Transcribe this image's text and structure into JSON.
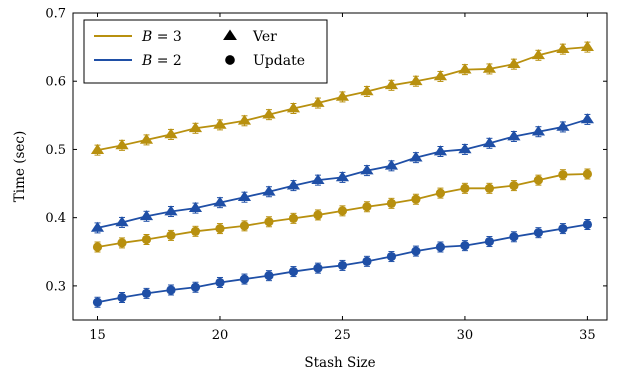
{
  "chart_data": {
    "type": "line",
    "xlabel": "Stash Size",
    "ylabel": "Time (sec)",
    "xlim": [
      14.0,
      35.8
    ],
    "ylim": [
      0.25,
      0.7
    ],
    "x_ticks": [
      15,
      20,
      25,
      30,
      35
    ],
    "y_ticks": [
      0.3,
      0.4,
      0.5,
      0.6,
      0.7
    ],
    "grid": false,
    "legend_position": "top-left",
    "x": [
      15,
      16,
      17,
      18,
      19,
      20,
      21,
      22,
      23,
      24,
      25,
      26,
      27,
      28,
      29,
      30,
      31,
      32,
      33,
      34,
      35
    ],
    "series": [
      {
        "name": "B = 3, Ver",
        "color": "#b8900f",
        "marker": "triangle",
        "values": [
          0.499,
          0.506,
          0.514,
          0.522,
          0.531,
          0.536,
          0.542,
          0.551,
          0.56,
          0.568,
          0.577,
          0.585,
          0.594,
          0.6,
          0.607,
          0.617,
          0.618,
          0.625,
          0.638,
          0.647,
          0.65
        ]
      },
      {
        "name": "B = 2, Ver",
        "color": "#1f4fa6",
        "marker": "triangle",
        "values": [
          0.385,
          0.393,
          0.402,
          0.409,
          0.414,
          0.422,
          0.43,
          0.438,
          0.447,
          0.455,
          0.459,
          0.469,
          0.476,
          0.488,
          0.497,
          0.5,
          0.509,
          0.519,
          0.526,
          0.533,
          0.544
        ]
      },
      {
        "name": "B = 3, Update",
        "color": "#b8900f",
        "marker": "circle",
        "values": [
          0.357,
          0.363,
          0.368,
          0.374,
          0.38,
          0.384,
          0.388,
          0.394,
          0.399,
          0.404,
          0.41,
          0.416,
          0.421,
          0.427,
          0.436,
          0.443,
          0.443,
          0.447,
          0.455,
          0.463,
          0.464
        ]
      },
      {
        "name": "B = 2, Update",
        "color": "#1f4fa6",
        "marker": "circle",
        "values": [
          0.276,
          0.283,
          0.289,
          0.294,
          0.298,
          0.305,
          0.31,
          0.315,
          0.321,
          0.326,
          0.33,
          0.336,
          0.343,
          0.351,
          0.357,
          0.359,
          0.365,
          0.372,
          0.378,
          0.384,
          0.39
        ]
      }
    ],
    "legend": [
      {
        "kind": "line",
        "prefix": "B",
        "suffix": " = 3",
        "color": "#b8900f"
      },
      {
        "kind": "line",
        "prefix": "B",
        "suffix": " = 2",
        "color": "#1f4fa6"
      },
      {
        "kind": "marker",
        "marker": "triangle",
        "label": "Ver",
        "color": "#000000"
      },
      {
        "kind": "marker",
        "marker": "circle",
        "label": "Update",
        "color": "#000000"
      }
    ]
  }
}
